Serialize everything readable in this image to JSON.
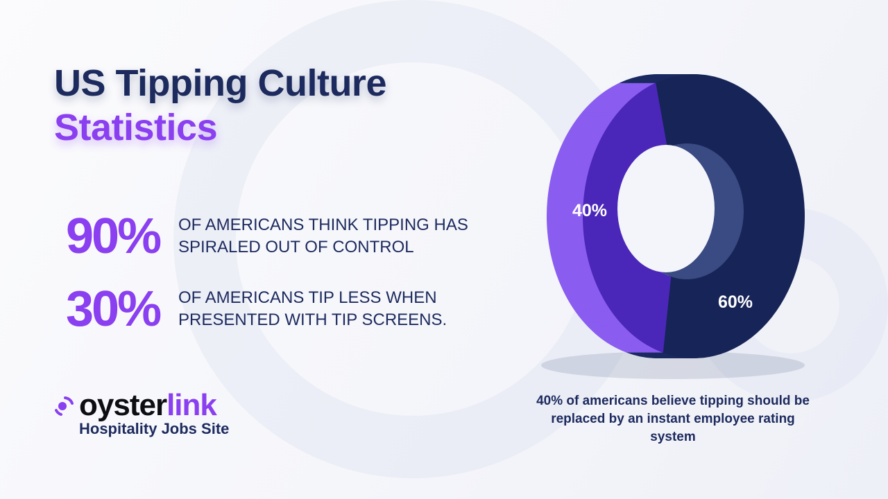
{
  "title": {
    "line1": "US Tipping Culture",
    "line2": "Statistics"
  },
  "stats": [
    {
      "value": "90%",
      "text_line1": "OF AMERICANS THINK TIPPING HAS",
      "text_line2": "SPIRALED OUT OF CONTROL"
    },
    {
      "value": "30%",
      "text_line1": "OF AMERICANS TIP LESS WHEN",
      "text_line2": "PRESENTED WITH TIP SCREENS."
    }
  ],
  "logo": {
    "name_part1": "oyster",
    "name_part2": "link",
    "tagline": "Hospitality Jobs Site"
  },
  "chart_data": {
    "type": "pie",
    "style": "3d-donut",
    "categories": [
      "",
      ""
    ],
    "values": [
      40,
      60
    ],
    "labels": [
      "40%",
      "60%"
    ],
    "colors": [
      "#4a27b8",
      "#172457"
    ],
    "side_colors": [
      "#8a5cf0",
      "#1a2a60"
    ],
    "caption": "40% of americans believe tipping should be replaced by an instant employee rating system"
  },
  "colors": {
    "accent": "#8a3ff0",
    "navy": "#1c2a5e"
  }
}
